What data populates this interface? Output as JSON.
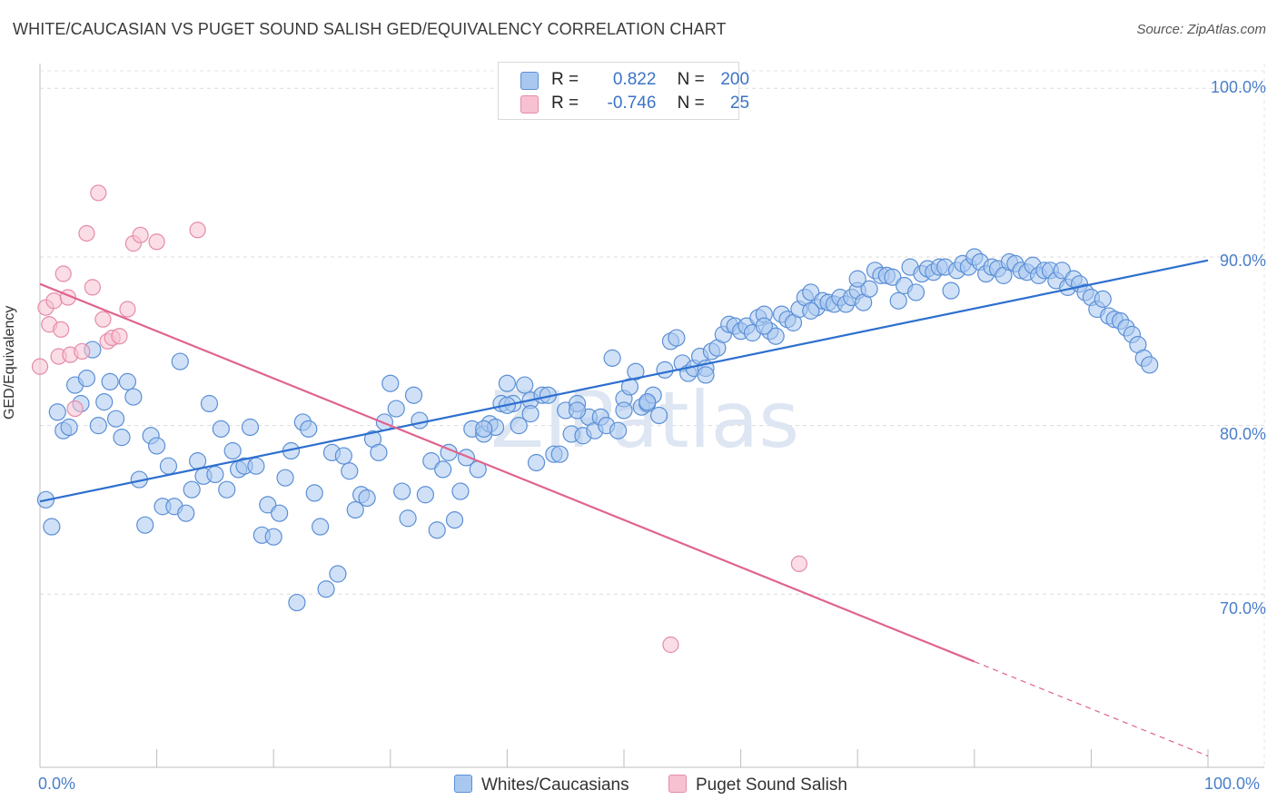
{
  "title": "WHITE/CAUCASIAN VS PUGET SOUND SALISH GED/EQUIVALENCY CORRELATION CHART",
  "source": "Source: ZipAtlas.com",
  "watermark": "ZIPatlas",
  "colors": {
    "blue_fill": "#a9c8f0",
    "blue_stroke": "#5b8fd6",
    "blue_line": "#2d6fcf",
    "pink_fill": "#f7c1d1",
    "pink_stroke": "#e58ba8",
    "pink_line": "#e0648f",
    "tick_text": "#4a7ec9"
  },
  "legend": {
    "rows": [
      {
        "r_label": "R =",
        "r_value": "0.822",
        "n_label": "N =",
        "n_value": "200"
      },
      {
        "r_label": "R =",
        "r_value": "-0.746",
        "n_label": "N =",
        "n_value": "25"
      }
    ]
  },
  "bottom_legend": {
    "series1": "Whites/Caucasians",
    "series2": "Puget Sound Salish"
  },
  "chart_data": {
    "type": "scatter",
    "title": "WHITE/CAUCASIAN VS PUGET SOUND SALISH GED/EQUIVALENCY CORRELATION CHART",
    "xlabel": "",
    "ylabel": "GED/Equivalency",
    "xlim": [
      0,
      100
    ],
    "ylim": [
      60,
      103
    ],
    "x_tick_labels": [
      "0.0%",
      "100.0%"
    ],
    "y_ticks": [
      70,
      80,
      90,
      100
    ],
    "y_tick_labels": [
      "70.0%",
      "80.0%",
      "90.0%",
      "100.0%"
    ],
    "grid": true,
    "series": [
      {
        "name": "Whites/Caucasians",
        "R": 0.822,
        "N": 200,
        "trend": {
          "x0": 0,
          "y0": 75.5,
          "x1": 100,
          "y1": 89.8
        },
        "points": [
          [
            0.5,
            75.6
          ],
          [
            1,
            74
          ],
          [
            1.5,
            80.8
          ],
          [
            2,
            79.7
          ],
          [
            2.5,
            79.9
          ],
          [
            3,
            82.4
          ],
          [
            3.5,
            81.3
          ],
          [
            4,
            82.8
          ],
          [
            4.5,
            84.5
          ],
          [
            5,
            80
          ],
          [
            5.5,
            81.4
          ],
          [
            6,
            82.6
          ],
          [
            6.5,
            80.4
          ],
          [
            7,
            79.3
          ],
          [
            7.5,
            82.6
          ],
          [
            8,
            81.7
          ],
          [
            8.5,
            76.8
          ],
          [
            9,
            74.1
          ],
          [
            9.5,
            79.4
          ],
          [
            10,
            78.8
          ],
          [
            10.5,
            75.2
          ],
          [
            11,
            77.6
          ],
          [
            11.5,
            75.2
          ],
          [
            12,
            83.8
          ],
          [
            12.5,
            74.8
          ],
          [
            13,
            76.2
          ],
          [
            13.5,
            77.9
          ],
          [
            14,
            77
          ],
          [
            14.5,
            81.3
          ],
          [
            15,
            77.1
          ],
          [
            15.5,
            79.8
          ],
          [
            16,
            76.2
          ],
          [
            16.5,
            78.5
          ],
          [
            17,
            77.4
          ],
          [
            17.5,
            77.6
          ],
          [
            18,
            79.9
          ],
          [
            18.5,
            77.6
          ],
          [
            19,
            73.5
          ],
          [
            19.5,
            75.3
          ],
          [
            20,
            73.4
          ],
          [
            20.5,
            74.8
          ],
          [
            21,
            76.9
          ],
          [
            21.5,
            78.5
          ],
          [
            22,
            69.5
          ],
          [
            22.5,
            80.2
          ],
          [
            23,
            79.8
          ],
          [
            23.5,
            76
          ],
          [
            24,
            74
          ],
          [
            24.5,
            70.3
          ],
          [
            25,
            78.4
          ],
          [
            25.5,
            71.2
          ],
          [
            26,
            78.2
          ],
          [
            26.5,
            77.3
          ],
          [
            27,
            75
          ],
          [
            27.5,
            75.9
          ],
          [
            28,
            75.7
          ],
          [
            28.5,
            79.2
          ],
          [
            29,
            78.4
          ],
          [
            29.5,
            80.2
          ],
          [
            30,
            82.5
          ],
          [
            30.5,
            81
          ],
          [
            31,
            76.1
          ],
          [
            31.5,
            74.5
          ],
          [
            32,
            81.8
          ],
          [
            32.5,
            80.3
          ],
          [
            33,
            75.9
          ],
          [
            33.5,
            77.9
          ],
          [
            34,
            73.8
          ],
          [
            34.5,
            77.4
          ],
          [
            35,
            78.4
          ],
          [
            35.5,
            74.4
          ],
          [
            36,
            76.1
          ],
          [
            36.5,
            78.1
          ],
          [
            37,
            79.8
          ],
          [
            37.5,
            77.4
          ],
          [
            38,
            79.5
          ],
          [
            38.5,
            80.1
          ],
          [
            39,
            79.9
          ],
          [
            39.5,
            81.3
          ],
          [
            40,
            82.5
          ],
          [
            40.5,
            81.3
          ],
          [
            41,
            80
          ],
          [
            41.5,
            82.4
          ],
          [
            42,
            81.5
          ],
          [
            42.5,
            77.8
          ],
          [
            43,
            81.8
          ],
          [
            43.5,
            81.8
          ],
          [
            44,
            78.3
          ],
          [
            44.5,
            78.3
          ],
          [
            45,
            80.9
          ],
          [
            45.5,
            79.5
          ],
          [
            46,
            81.3
          ],
          [
            46.5,
            79.4
          ],
          [
            47,
            80.5
          ],
          [
            47.5,
            79.7
          ],
          [
            48,
            80.5
          ],
          [
            48.5,
            80
          ],
          [
            49,
            84
          ],
          [
            49.5,
            79.7
          ],
          [
            50,
            81.6
          ],
          [
            50.5,
            82.3
          ],
          [
            51,
            83.2
          ],
          [
            51.5,
            81.1
          ],
          [
            52,
            81.3
          ],
          [
            52.5,
            81.8
          ],
          [
            53,
            80.6
          ],
          [
            53.5,
            83.3
          ],
          [
            54,
            85
          ],
          [
            54.5,
            85.2
          ],
          [
            55,
            83.7
          ],
          [
            55.5,
            83.1
          ],
          [
            56,
            83.4
          ],
          [
            56.5,
            84.1
          ],
          [
            57,
            83.4
          ],
          [
            57.5,
            84.4
          ],
          [
            58,
            84.6
          ],
          [
            58.5,
            85.4
          ],
          [
            59,
            86
          ],
          [
            59.5,
            85.9
          ],
          [
            60,
            85.6
          ],
          [
            60.5,
            85.9
          ],
          [
            61,
            85.5
          ],
          [
            61.5,
            86.4
          ],
          [
            62,
            86.6
          ],
          [
            62.5,
            85.6
          ],
          [
            63,
            85.3
          ],
          [
            63.5,
            86.6
          ],
          [
            64,
            86.3
          ],
          [
            64.5,
            86.1
          ],
          [
            65,
            86.9
          ],
          [
            65.5,
            87.6
          ],
          [
            66,
            87.9
          ],
          [
            66.5,
            87
          ],
          [
            67,
            87.4
          ],
          [
            67.5,
            87.3
          ],
          [
            68,
            87.2
          ],
          [
            68.5,
            87.6
          ],
          [
            69,
            87.2
          ],
          [
            69.5,
            87.6
          ],
          [
            70,
            88
          ],
          [
            70.5,
            87.3
          ],
          [
            71,
            88.1
          ],
          [
            71.5,
            89.2
          ],
          [
            72,
            88.9
          ],
          [
            72.5,
            88.9
          ],
          [
            73,
            88.8
          ],
          [
            73.5,
            87.4
          ],
          [
            74,
            88.3
          ],
          [
            74.5,
            89.4
          ],
          [
            75,
            87.9
          ],
          [
            75.5,
            89
          ],
          [
            76,
            89.3
          ],
          [
            76.5,
            89.1
          ],
          [
            77,
            89.4
          ],
          [
            77.5,
            89.4
          ],
          [
            78,
            88
          ],
          [
            78.5,
            89.2
          ],
          [
            79,
            89.6
          ],
          [
            79.5,
            89.4
          ],
          [
            80,
            90
          ],
          [
            80.5,
            89.7
          ],
          [
            81,
            89
          ],
          [
            81.5,
            89.4
          ],
          [
            82,
            89.3
          ],
          [
            82.5,
            88.9
          ],
          [
            83,
            89.7
          ],
          [
            83.5,
            89.6
          ],
          [
            84,
            89.2
          ],
          [
            84.5,
            89.1
          ],
          [
            85,
            89.5
          ],
          [
            85.5,
            88.9
          ],
          [
            86,
            89.2
          ],
          [
            86.5,
            89.2
          ],
          [
            87,
            88.6
          ],
          [
            87.5,
            89.2
          ],
          [
            88,
            88.2
          ],
          [
            88.5,
            88.7
          ],
          [
            89,
            88.4
          ],
          [
            89.5,
            87.9
          ],
          [
            90,
            87.6
          ],
          [
            90.5,
            86.9
          ],
          [
            91,
            87.5
          ],
          [
            91.5,
            86.5
          ],
          [
            92,
            86.3
          ],
          [
            92.5,
            86.2
          ],
          [
            93,
            85.8
          ],
          [
            93.5,
            85.4
          ],
          [
            94,
            84.8
          ],
          [
            94.5,
            84
          ],
          [
            95,
            83.6
          ],
          [
            38,
            79.8
          ],
          [
            40,
            81.2
          ],
          [
            42,
            80.7
          ],
          [
            46,
            80.9
          ],
          [
            50,
            80.9
          ],
          [
            52,
            81.4
          ],
          [
            57,
            83
          ],
          [
            62,
            85.9
          ],
          [
            66,
            86.8
          ],
          [
            70,
            88.7
          ]
        ]
      },
      {
        "name": "Puget Sound Salish",
        "R": -0.746,
        "N": 25,
        "trend": {
          "x0": 0,
          "y0": 88.4,
          "x1": 80,
          "y1": 66,
          "dash_to_x": 100,
          "dash_to_y": 60.4
        },
        "points": [
          [
            0,
            83.5
          ],
          [
            0.5,
            87
          ],
          [
            0.8,
            86
          ],
          [
            1.2,
            87.4
          ],
          [
            1.6,
            84.1
          ],
          [
            1.8,
            85.7
          ],
          [
            2,
            89
          ],
          [
            2.4,
            87.6
          ],
          [
            2.6,
            84.2
          ],
          [
            3,
            81
          ],
          [
            3.6,
            84.4
          ],
          [
            4,
            91.4
          ],
          [
            4.5,
            88.2
          ],
          [
            5,
            93.8
          ],
          [
            5.4,
            86.3
          ],
          [
            5.8,
            85
          ],
          [
            6.2,
            85.2
          ],
          [
            6.8,
            85.3
          ],
          [
            7.5,
            86.9
          ],
          [
            8,
            90.8
          ],
          [
            8.6,
            91.3
          ],
          [
            10,
            90.9
          ],
          [
            13.5,
            91.6
          ],
          [
            54,
            67
          ],
          [
            65,
            71.8
          ]
        ]
      }
    ]
  }
}
